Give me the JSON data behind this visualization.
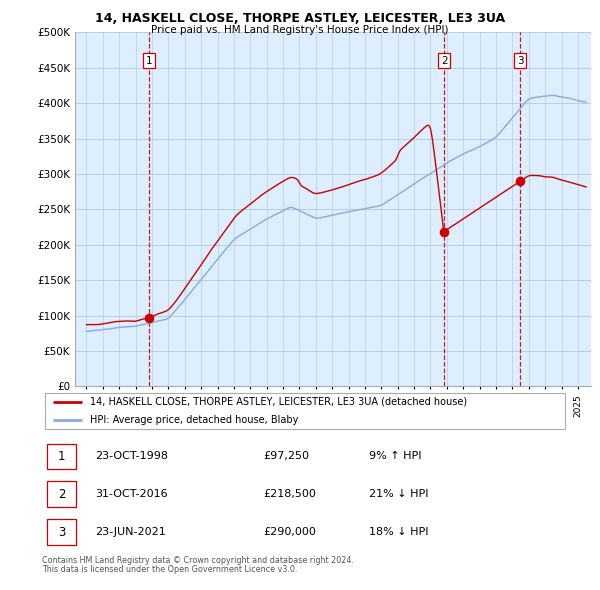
{
  "title": "14, HASKELL CLOSE, THORPE ASTLEY, LEICESTER, LE3 3UA",
  "subtitle": "Price paid vs. HM Land Registry's House Price Index (HPI)",
  "legend_line1": "14, HASKELL CLOSE, THORPE ASTLEY, LEICESTER, LE3 3UA (detached house)",
  "legend_line2": "HPI: Average price, detached house, Blaby",
  "footer1": "Contains HM Land Registry data © Crown copyright and database right 2024.",
  "footer2": "This data is licensed under the Open Government Licence v3.0.",
  "sale_points": [
    {
      "label": "1",
      "date": "23-OCT-1998",
      "price": 97250,
      "pct": "9%",
      "dir": "↑"
    },
    {
      "label": "2",
      "date": "31-OCT-2016",
      "price": 218500,
      "pct": "21%",
      "dir": "↓"
    },
    {
      "label": "3",
      "date": "23-JUN-2021",
      "price": 290000,
      "pct": "18%",
      "dir": "↓"
    }
  ],
  "sale_years": [
    1998.81,
    2016.83,
    2021.47
  ],
  "line_color_property": "#cc0000",
  "line_color_hpi": "#88aadd",
  "vline_color": "#cc0000",
  "ylim": [
    0,
    500000
  ],
  "yticks": [
    0,
    50000,
    100000,
    150000,
    200000,
    250000,
    300000,
    350000,
    400000,
    450000,
    500000
  ],
  "chart_bg": "#ddeeff",
  "background_color": "#ffffff",
  "grid_color": "#bbccdd"
}
